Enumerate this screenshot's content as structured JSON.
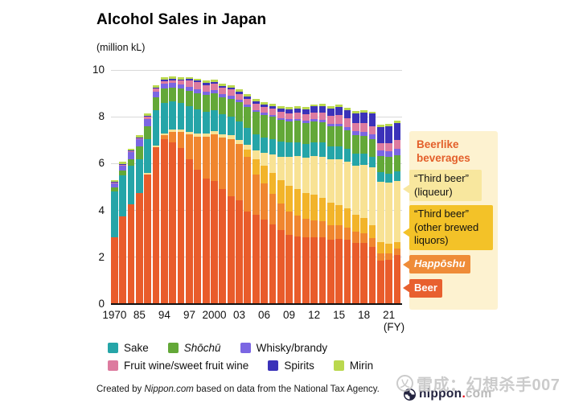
{
  "header": {
    "title": "Alcohol Sales in Japan",
    "unit_label": "(million kL)"
  },
  "axis": {
    "y_ticks": [
      0,
      2,
      4,
      6,
      8,
      10
    ],
    "x_tick_indices": [
      0,
      3,
      6,
      9,
      12,
      15,
      18,
      21,
      24,
      27,
      30,
      33
    ],
    "x_tick_labels": [
      "1970",
      "85",
      "94",
      "97",
      "2000",
      "03",
      "06",
      "09",
      "12",
      "15",
      "18",
      "21"
    ],
    "fy_label": "(FY)"
  },
  "chart_data": {
    "type": "bar",
    "stacked": true,
    "title": "Alcohol Sales in Japan",
    "ylabel": "(million kL)",
    "ylim": [
      0,
      10
    ],
    "grid": true,
    "categories": [
      "1970",
      "1975",
      "1980",
      "1985",
      "1988",
      "1991",
      "1994",
      "1995",
      "1996",
      "1997",
      "1998",
      "1999",
      "2000",
      "2001",
      "2002",
      "2003",
      "2004",
      "2005",
      "2006",
      "2007",
      "2008",
      "2009",
      "2010",
      "2011",
      "2012",
      "2013",
      "2014",
      "2015",
      "2016",
      "2017",
      "2018",
      "2019",
      "2020",
      "2021",
      "2022"
    ],
    "series": [
      {
        "name": "Beer",
        "color": "#e95c2b",
        "values": [
          2.85,
          3.75,
          4.25,
          4.75,
          5.55,
          6.7,
          7.05,
          6.9,
          6.65,
          6.2,
          5.75,
          5.35,
          5.25,
          4.9,
          4.6,
          4.45,
          3.95,
          3.8,
          3.6,
          3.4,
          3.15,
          2.95,
          2.9,
          2.85,
          2.85,
          2.85,
          2.75,
          2.78,
          2.75,
          2.62,
          2.6,
          2.45,
          1.85,
          1.9,
          2.1
        ]
      },
      {
        "name": "Happōshu",
        "color": "#f0862f",
        "values": [
          0,
          0,
          0,
          0,
          0,
          0,
          0.15,
          0.45,
          0.7,
          1.05,
          1.4,
          1.8,
          2.0,
          2.2,
          2.45,
          2.4,
          2.35,
          1.75,
          1.55,
          1.3,
          1.15,
          1.0,
          0.88,
          0.78,
          0.73,
          0.68,
          0.63,
          0.58,
          0.53,
          0.48,
          0.43,
          0.38,
          0.33,
          0.28,
          0.26
        ]
      },
      {
        "name": "“Third beer” (other brewed liquors)",
        "color": "#f2b42a",
        "values": [
          0,
          0,
          0,
          0,
          0,
          0,
          0,
          0,
          0,
          0,
          0,
          0,
          0,
          0,
          0,
          0,
          0.3,
          0.65,
          0.75,
          0.9,
          1.0,
          1.1,
          1.15,
          1.12,
          1.08,
          1.02,
          0.95,
          0.88,
          0.8,
          0.72,
          0.65,
          0.55,
          0.45,
          0.4,
          0.3
        ]
      },
      {
        "name": "“Third beer” (liqueur)",
        "color": "#f8e294",
        "values": [
          0,
          0,
          0,
          0,
          0.05,
          0.08,
          0.1,
          0.1,
          0.1,
          0.12,
          0.13,
          0.13,
          0.14,
          0.15,
          0.15,
          0.16,
          0.2,
          0.35,
          0.55,
          0.8,
          1.0,
          1.25,
          1.4,
          1.5,
          1.65,
          1.75,
          1.85,
          1.95,
          2.0,
          2.08,
          2.25,
          2.45,
          2.6,
          2.6,
          2.6
        ]
      },
      {
        "name": "Sake",
        "color": "#25a5a8",
        "values": [
          1.95,
          1.75,
          1.65,
          1.45,
          1.45,
          1.5,
          1.3,
          1.2,
          1.15,
          1.1,
          1.05,
          0.95,
          0.9,
          0.85,
          0.8,
          0.78,
          0.73,
          0.7,
          0.68,
          0.65,
          0.63,
          0.6,
          0.59,
          0.6,
          0.6,
          0.6,
          0.57,
          0.56,
          0.55,
          0.53,
          0.5,
          0.47,
          0.4,
          0.4,
          0.42
        ]
      },
      {
        "name": "Shōchū",
        "color": "#63a838",
        "values": [
          0.2,
          0.22,
          0.3,
          0.55,
          0.55,
          0.55,
          0.6,
          0.6,
          0.62,
          0.65,
          0.68,
          0.7,
          0.72,
          0.75,
          0.78,
          0.82,
          0.88,
          0.95,
          0.95,
          0.95,
          0.93,
          0.9,
          0.9,
          0.88,
          0.88,
          0.86,
          0.84,
          0.83,
          0.8,
          0.78,
          0.76,
          0.74,
          0.7,
          0.7,
          0.68
        ]
      },
      {
        "name": "Whisky/brandy",
        "color": "#7b66e3",
        "values": [
          0.15,
          0.2,
          0.28,
          0.28,
          0.3,
          0.25,
          0.2,
          0.19,
          0.18,
          0.17,
          0.16,
          0.15,
          0.14,
          0.13,
          0.12,
          0.11,
          0.1,
          0.1,
          0.09,
          0.09,
          0.09,
          0.09,
          0.09,
          0.1,
          0.1,
          0.11,
          0.12,
          0.13,
          0.15,
          0.17,
          0.18,
          0.2,
          0.22,
          0.26,
          0.29
        ]
      },
      {
        "name": "Fruit wine/sweet fruit wine",
        "color": "#dd7b9f",
        "values": [
          0.05,
          0.04,
          0.05,
          0.06,
          0.1,
          0.12,
          0.13,
          0.13,
          0.14,
          0.25,
          0.3,
          0.28,
          0.27,
          0.26,
          0.26,
          0.25,
          0.25,
          0.25,
          0.25,
          0.25,
          0.25,
          0.25,
          0.26,
          0.28,
          0.3,
          0.32,
          0.34,
          0.37,
          0.36,
          0.36,
          0.35,
          0.34,
          0.32,
          0.33,
          0.35
        ]
      },
      {
        "name": "Spirits",
        "color": "#3b32b9",
        "values": [
          0.02,
          0.02,
          0.02,
          0.03,
          0.04,
          0.05,
          0.06,
          0.06,
          0.06,
          0.07,
          0.07,
          0.08,
          0.08,
          0.09,
          0.09,
          0.1,
          0.1,
          0.11,
          0.12,
          0.13,
          0.15,
          0.17,
          0.19,
          0.22,
          0.25,
          0.28,
          0.3,
          0.33,
          0.36,
          0.4,
          0.45,
          0.55,
          0.7,
          0.74,
          0.75
        ]
      },
      {
        "name": "Mirin",
        "color": "#bad84e",
        "values": [
          0.08,
          0.09,
          0.09,
          0.09,
          0.1,
          0.1,
          0.1,
          0.1,
          0.1,
          0.1,
          0.1,
          0.1,
          0.1,
          0.1,
          0.1,
          0.1,
          0.1,
          0.1,
          0.1,
          0.1,
          0.1,
          0.1,
          0.1,
          0.1,
          0.1,
          0.1,
          0.1,
          0.1,
          0.1,
          0.1,
          0.1,
          0.09,
          0.09,
          0.09,
          0.09
        ]
      }
    ]
  },
  "annotations": {
    "panel_title": "Beerlike beverages",
    "labels": [
      {
        "text": "“Third beer” (liqueur)"
      },
      {
        "text": "“Third beer” (other brewed liquors)"
      },
      {
        "text": "Happōshu"
      },
      {
        "text": "Beer"
      }
    ]
  },
  "legend": {
    "items": [
      {
        "label": "Sake",
        "color": "#25a5a8",
        "italic": false
      },
      {
        "label": "Shōchū",
        "color": "#63a838",
        "italic": true
      },
      {
        "label": "Whisky/brandy",
        "color": "#7b66e3",
        "italic": false
      },
      {
        "label": "Fruit wine/sweet fruit wine",
        "color": "#dd7b9f",
        "italic": false
      },
      {
        "label": "Spirits",
        "color": "#3b32b9",
        "italic": false
      },
      {
        "label": "Mirin",
        "color": "#bad84e",
        "italic": false
      }
    ]
  },
  "footer": {
    "prefix": "Created by ",
    "brand": "Nippon.com",
    "suffix": " based on data from the National Tax Agency."
  },
  "logo": {
    "name": "nippon",
    "dot": ".",
    "tld": "com"
  },
  "watermark": {
    "badge": "乂",
    "text": "雷成：幻想杀手007"
  }
}
